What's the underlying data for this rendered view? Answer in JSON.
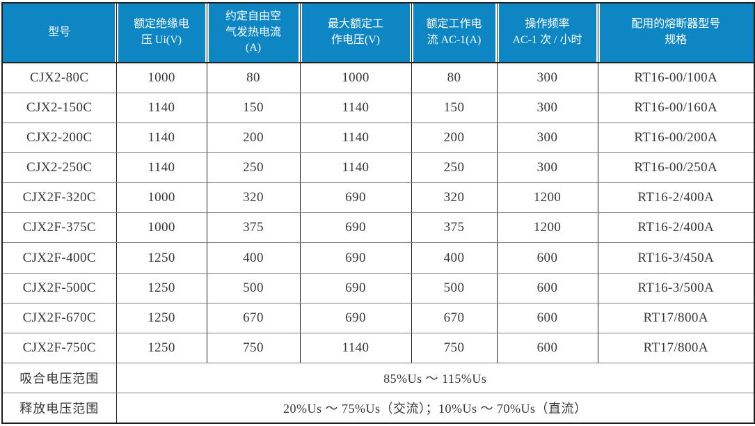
{
  "colors": {
    "header_bg": "#0e86c4",
    "header_text": "#ffffff",
    "grid_dark": "#1f1f1f",
    "grid_light": "#7f7f7f",
    "body_text": "#363636"
  },
  "table": {
    "headers": [
      "型号",
      "额定绝缘电\n压 Ui(V)",
      "约定自由空\n气发热电流\n(A)",
      "最大额定工\n作电压(V)",
      "额定工作电\n流 AC-1(A)",
      "操作频率\nAC-1 次 / 小时",
      "配用的熔断器型号\n规格"
    ],
    "rows": [
      [
        "CJX2-80C",
        "1000",
        "80",
        "1000",
        "80",
        "300",
        "RT16-00/100A"
      ],
      [
        "CJX2-150C",
        "1140",
        "150",
        "1140",
        "150",
        "300",
        "RT16-00/160A"
      ],
      [
        "CJX2-200C",
        "1140",
        "200",
        "1140",
        "200",
        "300",
        "RT16-00/200A"
      ],
      [
        "CJX2-250C",
        "1140",
        "250",
        "1140",
        "250",
        "300",
        "RT16-00/250A"
      ],
      [
        "CJX2F-320C",
        "1000",
        "320",
        "690",
        "320",
        "1200",
        "RT16-2/400A"
      ],
      [
        "CJX2F-375C",
        "1000",
        "375",
        "690",
        "375",
        "1200",
        "RT16-2/400A"
      ],
      [
        "CJX2F-400C",
        "1250",
        "400",
        "690",
        "400",
        "600",
        "RT16-3/450A"
      ],
      [
        "CJX2F-500C",
        "1250",
        "500",
        "690",
        "500",
        "600",
        "RT16-3/500A"
      ],
      [
        "CJX2F-670C",
        "1250",
        "670",
        "690",
        "670",
        "600",
        "RT17/800A"
      ],
      [
        "CJX2F-750C",
        "1250",
        "750",
        "1140",
        "750",
        "600",
        "RT17/800A"
      ]
    ],
    "footer_rows": [
      {
        "label": "吸合电压范围",
        "value": "85%Us ～ 115%Us"
      },
      {
        "label": "释放电压范围",
        "value": "20%Us ～ 75%Us（交流）；10%Us ～ 70%Us（直流）"
      }
    ]
  }
}
